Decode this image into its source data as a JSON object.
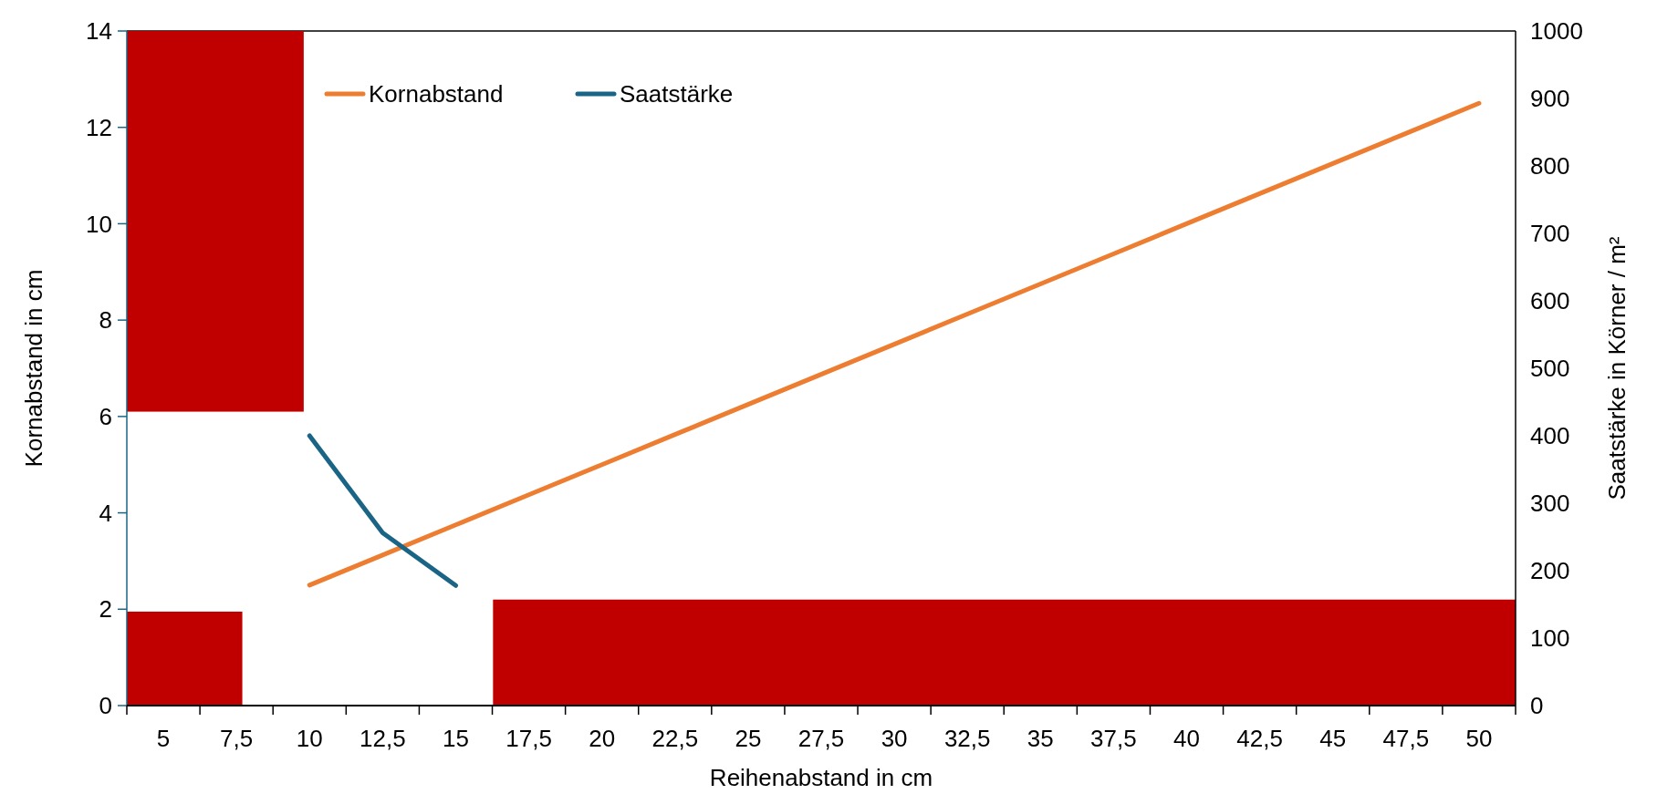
{
  "chart_data": {
    "type": "line",
    "xlabel": "Reihenabstand in cm",
    "ylabel": "Kornabstand in cm",
    "y2label": "Saatstärke in Körner / m²",
    "categories": [
      "5",
      "7,5",
      "10",
      "12,5",
      "15",
      "17,5",
      "20",
      "22,5",
      "25",
      "27,5",
      "30",
      "32,5",
      "35",
      "37,5",
      "40",
      "42,5",
      "45",
      "47,5",
      "50"
    ],
    "series": [
      {
        "name": "Kornabstand",
        "color": "#ed7d31",
        "values": [
          null,
          null,
          2.5,
          3.125,
          3.75,
          4.375,
          5,
          5.625,
          6.25,
          6.875,
          7.5,
          8.125,
          8.75,
          9.375,
          10,
          10.625,
          11.25,
          11.875,
          12.5
        ]
      },
      {
        "name": "Saatstärke",
        "color": "#1a6485",
        "axis": "y2",
        "values": [
          null,
          null,
          400,
          256,
          178,
          null,
          null,
          null,
          null,
          null,
          null,
          null,
          null,
          null,
          null,
          null,
          null,
          null,
          null
        ]
      }
    ],
    "ylim": [
      0,
      14
    ],
    "yticks": [
      0,
      2,
      4,
      6,
      8,
      10,
      12,
      14
    ],
    "y2lim": [
      0,
      1000
    ],
    "y2ticks": [
      0,
      100,
      200,
      300,
      400,
      500,
      600,
      700,
      800,
      900,
      1000
    ],
    "legend": "top",
    "grid": false
  }
}
